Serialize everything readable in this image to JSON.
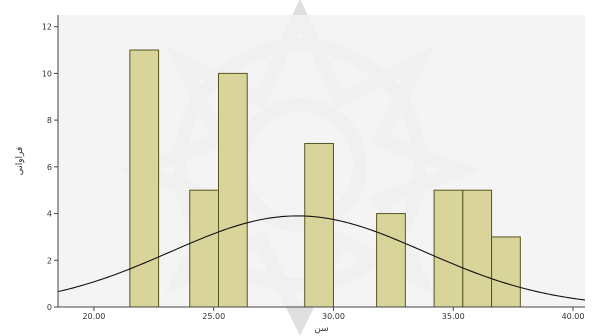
{
  "chart_data": {
    "type": "bar",
    "title": "",
    "xlabel": "سن",
    "ylabel": "فراوانی",
    "xlim": [
      18.5,
      40.5
    ],
    "ylim": [
      0,
      12.5
    ],
    "grid": false,
    "x_ticks": [
      {
        "value": 20,
        "label": "20.00"
      },
      {
        "value": 25,
        "label": "25.00"
      },
      {
        "value": 30,
        "label": "30.00"
      },
      {
        "value": 35,
        "label": "35.00"
      },
      {
        "value": 40,
        "label": "40.00"
      }
    ],
    "y_ticks": [
      {
        "value": 0,
        "label": "0"
      },
      {
        "value": 2,
        "label": "2"
      },
      {
        "value": 4,
        "label": "4"
      },
      {
        "value": 6,
        "label": "6"
      },
      {
        "value": 8,
        "label": "8"
      },
      {
        "value": 10,
        "label": "10"
      },
      {
        "value": 12,
        "label": "12"
      }
    ],
    "bars": [
      {
        "x0": 21.5,
        "x1": 22.7,
        "value": 11
      },
      {
        "x0": 24.0,
        "x1": 25.2,
        "value": 5
      },
      {
        "x0": 25.2,
        "x1": 26.4,
        "value": 10
      },
      {
        "x0": 28.8,
        "x1": 30.0,
        "value": 7
      },
      {
        "x0": 31.8,
        "x1": 33.0,
        "value": 4
      },
      {
        "x0": 34.2,
        "x1": 35.4,
        "value": 5
      },
      {
        "x0": 35.4,
        "x1": 36.6,
        "value": 5
      },
      {
        "x0": 36.6,
        "x1": 37.8,
        "value": 3
      }
    ],
    "normal_curve": {
      "mean": 28.5,
      "std": 5.3,
      "peak": 3.9
    },
    "colors": {
      "plot_background": "#f2f2f2",
      "bar_fill": "#d9d49a",
      "bar_stroke": "#555522",
      "curve": "#111111"
    }
  }
}
